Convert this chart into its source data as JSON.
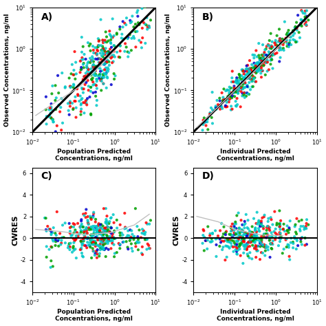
{
  "panel_labels": [
    "A)",
    "B)",
    "C)",
    "D)"
  ],
  "colors": {
    "cyan": "#00C8C8",
    "green": "#00A000",
    "red": "#FF0000",
    "blue": "#0000CD"
  },
  "n_points": 400,
  "log_xlim": [
    0.01,
    10
  ],
  "log_ylim": [
    0.01,
    10
  ],
  "cwres_ylim": [
    -5,
    6.5
  ],
  "cwres_yticks": [
    -4,
    -2,
    0,
    2,
    4,
    6
  ],
  "xlabel_A": "Population Predicted\nConcentrations, ng/ml",
  "xlabel_B": "Individual Predicted\nConcentrations, ng/ml",
  "ylabel_AB": "Observed Concentrations, ng/ml",
  "ylabel_CD": "CWRES",
  "background": "#FFFFFF"
}
